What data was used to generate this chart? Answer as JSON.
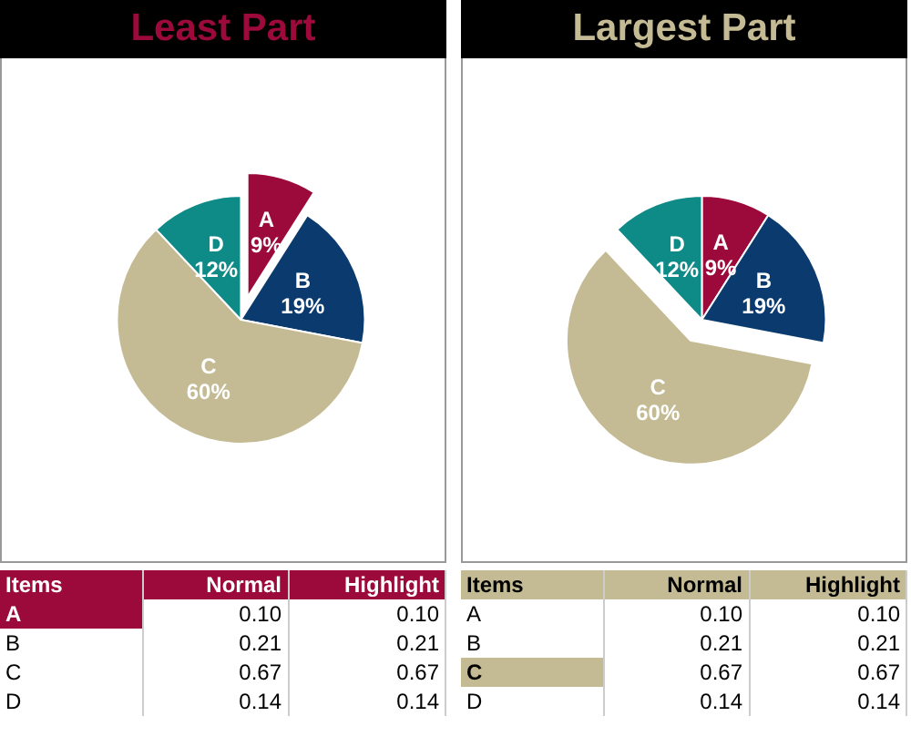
{
  "chart_data": [
    {
      "type": "pie",
      "title": "Least Part",
      "categories": [
        "A",
        "B",
        "C",
        "D"
      ],
      "values": [
        9,
        19,
        60,
        12
      ],
      "value_labels": [
        "9%",
        "19%",
        "60%",
        "12%"
      ],
      "colors": [
        "#9b0a3a",
        "#0b3b6e",
        "#c4bb94",
        "#0e8a87"
      ]
    },
    {
      "type": "other",
      "xlabel": "Items",
      "categories": [
        "A",
        "B",
        "C",
        "D"
      ],
      "colors": [
        "#9b0a3a",
        null,
        null,
        null
      ],
      "series": [
        {
          "name": "Normal",
          "values": [
            0.1,
            0.21,
            0.67,
            0.14
          ],
          "value_labels": [
            "0.10",
            "0.21",
            "0.67",
            "0.14"
          ]
        },
        {
          "name": "Highlight",
          "values": [
            0.1,
            0.21,
            0.67,
            0.14
          ],
          "value_labels": [
            "0.10",
            "0.21",
            "0.67",
            "0.14"
          ]
        }
      ]
    },
    {
      "type": "pie",
      "title": "Largest Part",
      "categories": [
        "A",
        "B",
        "C",
        "D"
      ],
      "values": [
        9,
        19,
        60,
        12
      ],
      "value_labels": [
        "9%",
        "19%",
        "60%",
        "12%"
      ],
      "colors": [
        "#9b0a3a",
        "#0b3b6e",
        "#c4bb94",
        "#0e8a87"
      ]
    },
    {
      "type": "other",
      "xlabel": "Items",
      "categories": [
        "A",
        "B",
        "C",
        "D"
      ],
      "colors": [
        null,
        null,
        "#c4bb94",
        null
      ],
      "series": [
        {
          "name": "Normal",
          "values": [
            0.1,
            0.21,
            0.67,
            0.14
          ],
          "value_labels": [
            "0.10",
            "0.21",
            "0.67",
            "0.14"
          ]
        },
        {
          "name": "Highlight",
          "values": [
            0.1,
            0.21,
            0.67,
            0.14
          ],
          "value_labels": [
            "0.10",
            "0.21",
            "0.67",
            "0.14"
          ]
        }
      ]
    }
  ]
}
